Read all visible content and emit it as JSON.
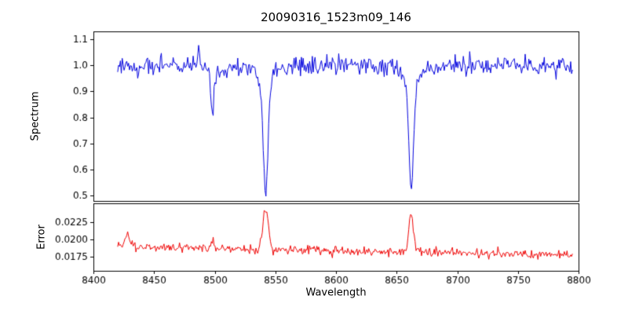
{
  "title": "20090316_1523m09_146",
  "chart_data": [
    {
      "type": "line",
      "name": "spectrum",
      "color": "#0000dd",
      "title": "20090316_1523m09_146",
      "xlabel": "Wavelength",
      "ylabel": "Spectrum",
      "xlim": [
        8400,
        8800
      ],
      "ylim": [
        0.48,
        1.13
      ],
      "x_data_range": [
        8420,
        8795
      ],
      "x_step": 0.75,
      "x_ticks": [
        8400,
        8450,
        8500,
        8550,
        8600,
        8650,
        8700,
        8750,
        8800
      ],
      "y_ticks": [
        0.5,
        0.6,
        0.7,
        0.8,
        0.9,
        1.0,
        1.1
      ],
      "grid": false,
      "legend": null,
      "continuum": 1.0,
      "noise_sigma": 0.017,
      "absorption_lines": [
        {
          "center": 8498,
          "depth": 0.2,
          "width": 1.1,
          "note": "narrow dip to ~0.80"
        },
        {
          "center": 8542,
          "depth": 0.48,
          "width": 1.9,
          "note": "deep dip to ~0.51"
        },
        {
          "center": 8662,
          "depth": 0.47,
          "width": 1.9,
          "note": "deep dip to ~0.52"
        }
      ],
      "emission_spikes": [
        {
          "center": 8487,
          "amp": 0.07,
          "width": 0.8,
          "note": "noise spike to ~1.10"
        }
      ]
    },
    {
      "type": "line",
      "name": "error",
      "color": "#ee0000",
      "xlabel": "Wavelength",
      "ylabel": "Error",
      "xlim": [
        8400,
        8800
      ],
      "ylim": [
        0.0155,
        0.0252
      ],
      "x_data_range": [
        8420,
        8795
      ],
      "x_step": 0.75,
      "x_ticks": [
        8400,
        8450,
        8500,
        8550,
        8600,
        8650,
        8700,
        8750,
        8800
      ],
      "y_ticks": [
        0.0175,
        0.02,
        0.0225
      ],
      "grid": false,
      "legend": null,
      "baseline_start": 0.019,
      "baseline_end": 0.0177,
      "noise_sigma": 0.00032,
      "peaks": [
        {
          "center": 8428,
          "amp": 0.0018,
          "width": 1.6
        },
        {
          "center": 8498,
          "amp": 0.0013,
          "width": 1.4
        },
        {
          "center": 8542,
          "amp": 0.006,
          "width": 2.2
        },
        {
          "center": 8662,
          "amp": 0.0052,
          "width": 2.0
        }
      ]
    }
  ]
}
